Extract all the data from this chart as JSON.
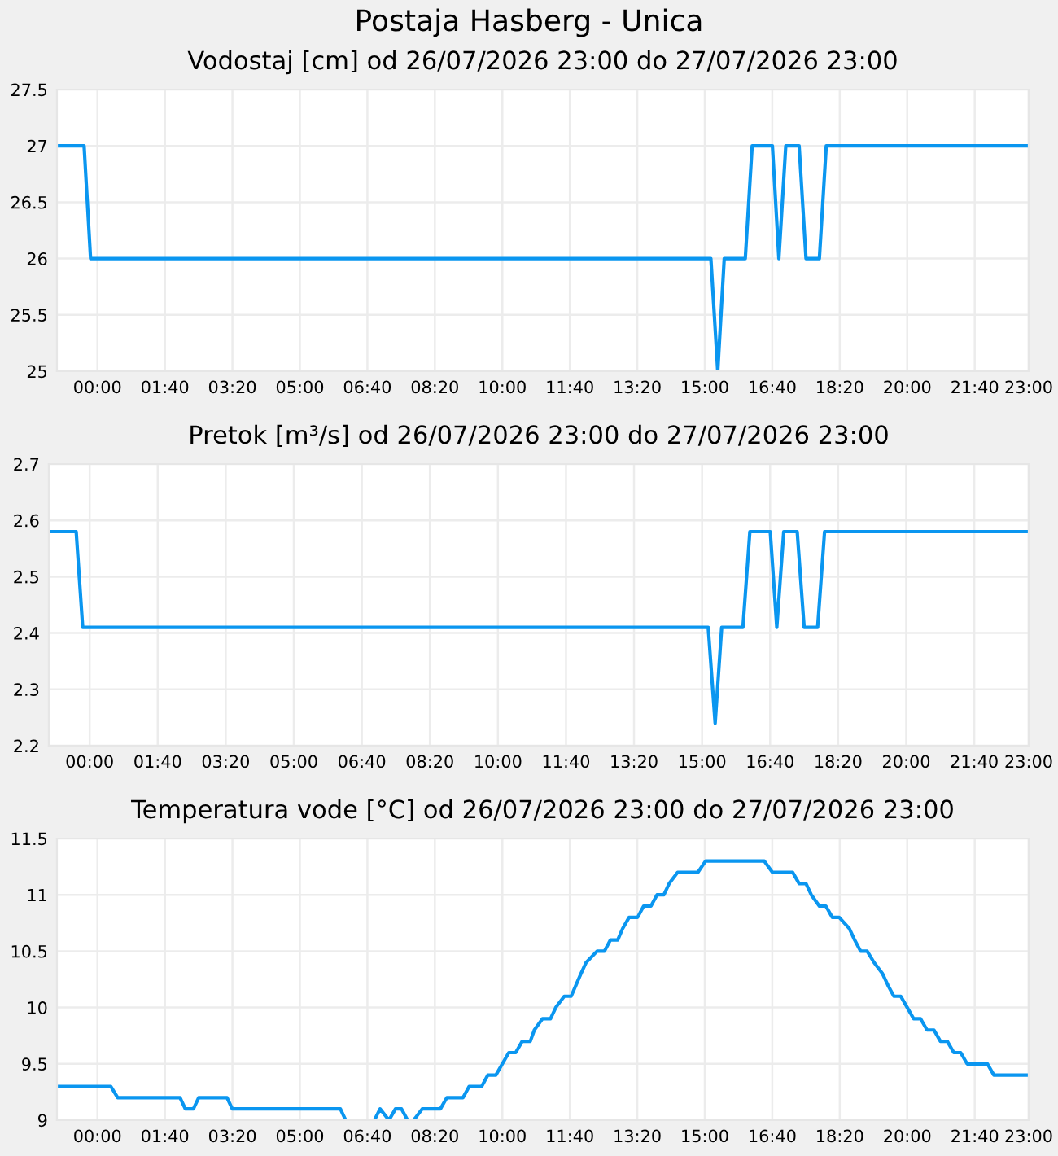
{
  "chart_data": [
    {
      "type": "line",
      "title": "Postaja Hasberg - Unica",
      "subtitle": "Vodostaj [cm] od 26/07/2026 23:00 do 27/07/2026 23:00",
      "grid": true,
      "series": [
        {
          "color": "#0a96f0",
          "x": [
            -1,
            -0.33,
            -0.17,
            15.15,
            15.32,
            15.48,
            16.0,
            16.17,
            16.67,
            16.83,
            17.0,
            17.33,
            17.5,
            17.83,
            18.0,
            23
          ],
          "values": [
            27,
            27,
            26,
            26,
            25,
            26,
            26,
            27,
            27,
            26,
            27,
            27,
            26,
            26,
            27,
            27
          ]
        }
      ],
      "xlim": [
        -1,
        23
      ],
      "ylim": [
        25,
        27.5
      ],
      "yticks": [
        25,
        25.5,
        26,
        26.5,
        27,
        27.5
      ],
      "xticks": [
        {
          "value": 0,
          "label": "00:00"
        },
        {
          "value": 1.667,
          "label": "01:40"
        },
        {
          "value": 3.333,
          "label": "03:20"
        },
        {
          "value": 5,
          "label": "05:00"
        },
        {
          "value": 6.667,
          "label": "06:40"
        },
        {
          "value": 8.333,
          "label": "08:20"
        },
        {
          "value": 10,
          "label": "10:00"
        },
        {
          "value": 11.667,
          "label": "11:40"
        },
        {
          "value": 13.333,
          "label": "13:20"
        },
        {
          "value": 15,
          "label": "15:00"
        },
        {
          "value": 16.667,
          "label": "16:40"
        },
        {
          "value": 18.333,
          "label": "18:20"
        },
        {
          "value": 20,
          "label": "20:00"
        },
        {
          "value": 21.667,
          "label": "21:40"
        },
        {
          "value": 23,
          "label": "23:00"
        }
      ]
    },
    {
      "type": "line",
      "title": "Pretok [m³/s] od 26/07/2026 23:00 do 27/07/2026 23:00",
      "grid": true,
      "series": [
        {
          "color": "#0a96f0",
          "x": [
            -1,
            -0.33,
            -0.17,
            15.15,
            15.32,
            15.48,
            16.0,
            16.17,
            16.67,
            16.83,
            17.0,
            17.33,
            17.5,
            17.83,
            18.0,
            23
          ],
          "values": [
            2.58,
            2.58,
            2.41,
            2.41,
            2.24,
            2.41,
            2.41,
            2.58,
            2.58,
            2.41,
            2.58,
            2.58,
            2.41,
            2.41,
            2.58,
            2.58
          ]
        }
      ],
      "xlim": [
        -1,
        23
      ],
      "ylim": [
        2.2,
        2.7
      ],
      "yticks": [
        2.2,
        2.3,
        2.4,
        2.5,
        2.6,
        2.7
      ],
      "xticks": [
        {
          "value": 0,
          "label": "00:00"
        },
        {
          "value": 1.667,
          "label": "01:40"
        },
        {
          "value": 3.333,
          "label": "03:20"
        },
        {
          "value": 5,
          "label": "05:00"
        },
        {
          "value": 6.667,
          "label": "06:40"
        },
        {
          "value": 8.333,
          "label": "08:20"
        },
        {
          "value": 10,
          "label": "10:00"
        },
        {
          "value": 11.667,
          "label": "11:40"
        },
        {
          "value": 13.333,
          "label": "13:20"
        },
        {
          "value": 15,
          "label": "15:00"
        },
        {
          "value": 16.667,
          "label": "16:40"
        },
        {
          "value": 18.333,
          "label": "18:20"
        },
        {
          "value": 20,
          "label": "20:00"
        },
        {
          "value": 21.667,
          "label": "21:40"
        },
        {
          "value": 23,
          "label": "23:00"
        }
      ]
    },
    {
      "type": "line",
      "title": "Temperatura vode [°C] od 26/07/2026 23:00 do 27/07/2026 23:00",
      "grid": true,
      "series": [
        {
          "color": "#0a96f0",
          "x": [
            -1,
            0.33,
            0.5,
            2.04,
            2.17,
            2.37,
            2.5,
            3.2,
            3.33,
            6.0,
            6.13,
            6.84,
            6.98,
            7.2,
            7.36,
            7.51,
            7.66,
            7.81,
            8.02,
            8.47,
            8.63,
            9.03,
            9.18,
            9.49,
            9.64,
            9.84,
            10.0,
            10.16,
            10.33,
            10.49,
            10.69,
            10.79,
            10.99,
            11.19,
            11.32,
            11.53,
            11.7,
            11.82,
            11.94,
            12.07,
            12.34,
            12.52,
            12.67,
            12.85,
            12.97,
            13.13,
            13.34,
            13.49,
            13.67,
            13.82,
            13.99,
            14.12,
            14.33,
            14.83,
            15.02,
            16.47,
            16.67,
            17.17,
            17.33,
            17.5,
            17.63,
            17.83,
            17.99,
            18.15,
            18.32,
            18.57,
            18.7,
            18.85,
            19.01,
            19.18,
            19.39,
            19.52,
            19.67,
            19.84,
            20.0,
            20.16,
            20.33,
            20.49,
            20.66,
            20.82,
            20.99,
            21.15,
            21.32,
            21.48,
            21.98,
            22.14,
            23
          ],
          "values": [
            9.3,
            9.3,
            9.2,
            9.2,
            9.1,
            9.1,
            9.2,
            9.2,
            9.1,
            9.1,
            9.0,
            9.0,
            9.1,
            9.0,
            9.1,
            9.1,
            9.0,
            9.0,
            9.1,
            9.1,
            9.2,
            9.2,
            9.3,
            9.3,
            9.4,
            9.4,
            9.5,
            9.6,
            9.6,
            9.7,
            9.7,
            9.8,
            9.9,
            9.9,
            10.0,
            10.1,
            10.1,
            10.2,
            10.3,
            10.4,
            10.5,
            10.5,
            10.6,
            10.6,
            10.7,
            10.8,
            10.8,
            10.9,
            10.9,
            11.0,
            11.0,
            11.1,
            11.2,
            11.2,
            11.3,
            11.3,
            11.2,
            11.2,
            11.1,
            11.1,
            11.0,
            10.9,
            10.9,
            10.8,
            10.8,
            10.7,
            10.6,
            10.5,
            10.5,
            10.4,
            10.3,
            10.2,
            10.1,
            10.1,
            10.0,
            9.9,
            9.9,
            9.8,
            9.8,
            9.7,
            9.7,
            9.6,
            9.6,
            9.5,
            9.5,
            9.4,
            9.4
          ]
        }
      ],
      "xlim": [
        -1,
        23
      ],
      "ylim": [
        9,
        11.5
      ],
      "yticks": [
        9,
        9.5,
        10,
        10.5,
        11,
        11.5
      ],
      "xticks": [
        {
          "value": 0,
          "label": "00:00"
        },
        {
          "value": 1.667,
          "label": "01:40"
        },
        {
          "value": 3.333,
          "label": "03:20"
        },
        {
          "value": 5,
          "label": "05:00"
        },
        {
          "value": 6.667,
          "label": "06:40"
        },
        {
          "value": 8.333,
          "label": "08:20"
        },
        {
          "value": 10,
          "label": "10:00"
        },
        {
          "value": 11.667,
          "label": "11:40"
        },
        {
          "value": 13.333,
          "label": "13:20"
        },
        {
          "value": 15,
          "label": "15:00"
        },
        {
          "value": 16.667,
          "label": "16:40"
        },
        {
          "value": 18.333,
          "label": "18:20"
        },
        {
          "value": 20,
          "label": "20:00"
        },
        {
          "value": 21.667,
          "label": "21:40"
        },
        {
          "value": 23,
          "label": "23:00"
        }
      ]
    }
  ]
}
